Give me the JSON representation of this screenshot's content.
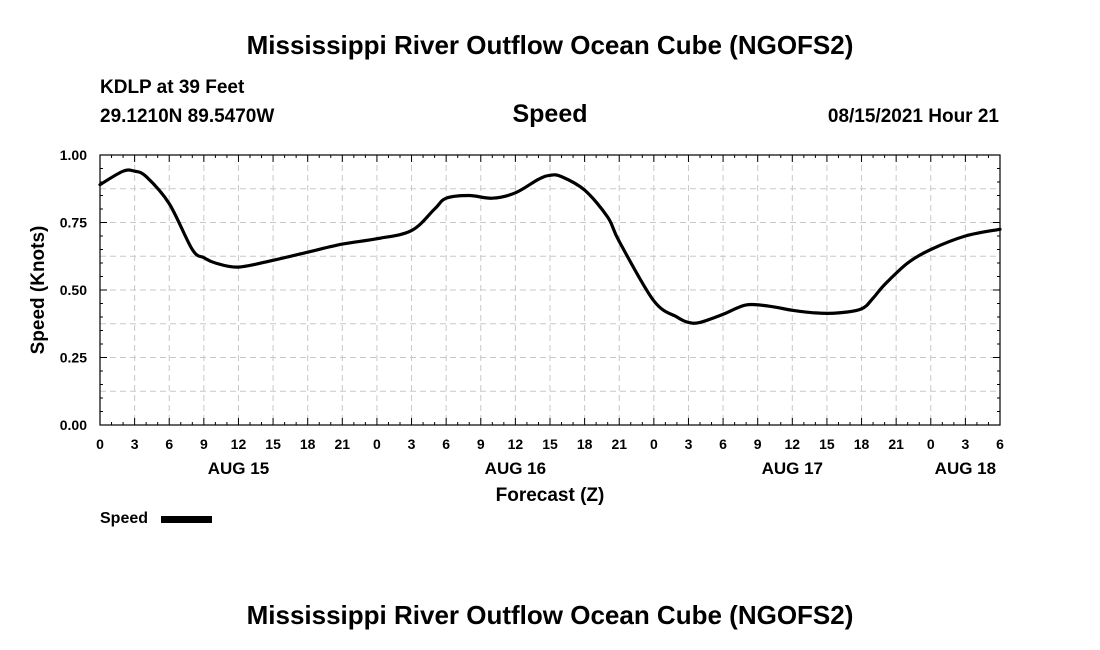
{
  "page": {
    "title_top": "Mississippi River Outflow Ocean Cube (NGOFS2)",
    "title_bottom": "Mississippi River Outflow Ocean Cube (NGOFS2)",
    "station": "KDLP at 39 Feet",
    "coords": "29.1210N  89.5470W",
    "variable": "Speed",
    "timestamp": "08/15/2021 Hour 21"
  },
  "chart_data": {
    "type": "line",
    "xlabel": "Forecast (Z)",
    "ylabel": "Speed (Knots)",
    "ylim": [
      0,
      1
    ],
    "yticks": [
      "0.00",
      "0.25",
      "0.50",
      "0.75",
      "1.00"
    ],
    "xlim": [
      0,
      78
    ],
    "x_unit": "hours from 00Z Aug 15",
    "xtick_labels": [
      "0",
      "3",
      "6",
      "9",
      "12",
      "15",
      "18",
      "21",
      "0",
      "3",
      "6",
      "9",
      "12",
      "15",
      "18",
      "21",
      "0",
      "3",
      "6",
      "9",
      "12",
      "15",
      "18",
      "21",
      "0",
      "3",
      "6"
    ],
    "day_labels": [
      {
        "label": "AUG 15",
        "hour": 12
      },
      {
        "label": "AUG 16",
        "hour": 36
      },
      {
        "label": "AUG 17",
        "hour": 60
      },
      {
        "label": "AUG 18",
        "hour": 75
      }
    ],
    "grid": true,
    "legend_position": "bottom-left",
    "series": [
      {
        "name": "Speed",
        "color": "#000000",
        "x": [
          0,
          2,
          3,
          4,
          6,
          8,
          9,
          10,
          12,
          15,
          18,
          21,
          24,
          27,
          29,
          30,
          32,
          34,
          36,
          38,
          39,
          40,
          42,
          44,
          45,
          48,
          50,
          51,
          52,
          54,
          56,
          58,
          60,
          62,
          64,
          66,
          67,
          68,
          70,
          72,
          75,
          78
        ],
        "values": [
          0.89,
          0.94,
          0.94,
          0.92,
          0.82,
          0.65,
          0.62,
          0.6,
          0.585,
          0.61,
          0.64,
          0.67,
          0.69,
          0.72,
          0.8,
          0.84,
          0.85,
          0.84,
          0.86,
          0.91,
          0.925,
          0.92,
          0.87,
          0.77,
          0.68,
          0.46,
          0.4,
          0.38,
          0.38,
          0.41,
          0.445,
          0.44,
          0.425,
          0.415,
          0.415,
          0.43,
          0.47,
          0.52,
          0.6,
          0.65,
          0.7,
          0.725
        ]
      }
    ]
  },
  "legend": {
    "label": "Speed"
  }
}
